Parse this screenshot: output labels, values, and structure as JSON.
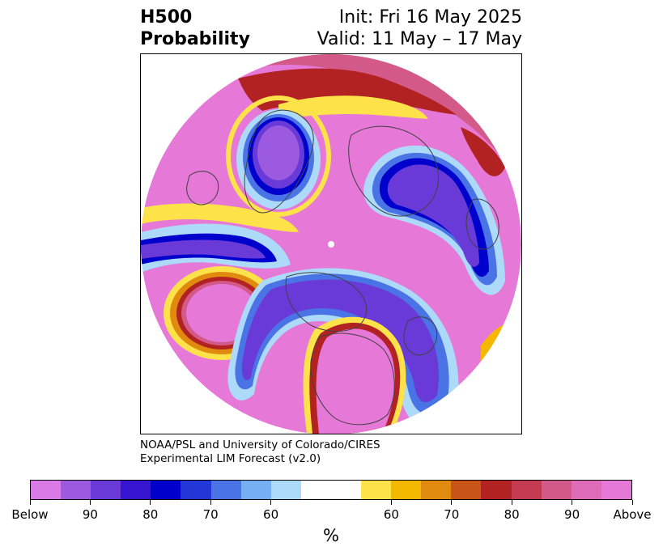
{
  "header": {
    "title_line1": "H500",
    "title_line2": "Probability",
    "init_text": "Init: Fri 16 May 2025",
    "valid_text": "Valid: 11 May – 17 May"
  },
  "credit": {
    "line1": "NOAA/PSL and University of Colorado/CIRES",
    "line2": "Experimental LIM Forecast (v2.0)"
  },
  "colorbar": {
    "colors": [
      "#d97ae6",
      "#9b5ae0",
      "#6a3ad8",
      "#3616d0",
      "#0000cc",
      "#2336d8",
      "#4a74e6",
      "#76b0f2",
      "#acdaf8",
      "#ffffff",
      "#ffffff",
      "#fee24a",
      "#f5b800",
      "#e08a10",
      "#c85418",
      "#b22222",
      "#c43a50",
      "#d35a88",
      "#de6cb8",
      "#e678d8"
    ],
    "tick_labels": [
      "Below",
      "90",
      "80",
      "70",
      "60",
      "60",
      "70",
      "80",
      "90",
      "Above"
    ],
    "unit": "%"
  },
  "map": {
    "palette": {
      "above": "#e678d8",
      "above_90": "#de6cb8",
      "above_80": "#d35a88",
      "above_70": "#b22222",
      "above_60": "#e08a10",
      "above_50": "#fee24a",
      "below": "#9b5ae0",
      "below_90": "#6a3ad8",
      "below_80": "#0000cc",
      "below_70": "#4a74e6",
      "below_60": "#acdaf8",
      "coastline": "#404040"
    }
  }
}
